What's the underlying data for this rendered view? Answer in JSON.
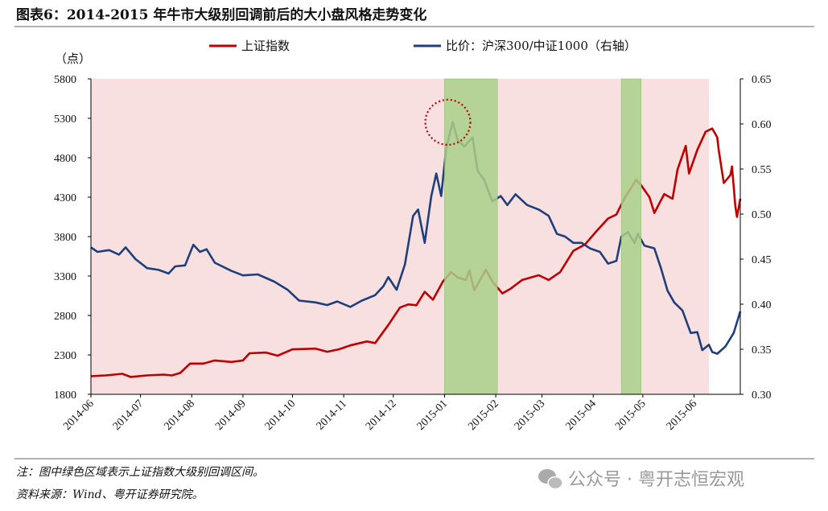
{
  "chart_data": {
    "type": "line",
    "title": "图表6：2014-2015 年牛市大级别回调前后的大小盘风格走势变化",
    "left_axis_unit": "（点）",
    "ylim_left": [
      1800,
      5800
    ],
    "yticks_left": [
      1800,
      2300,
      2800,
      3300,
      3800,
      4300,
      4800,
      5300,
      5800
    ],
    "ylim_right": [
      0.3,
      0.65
    ],
    "yticks_right": [
      "0.30",
      "0.35",
      "0.40",
      "0.45",
      "0.50",
      "0.55",
      "0.60",
      "0.65"
    ],
    "xlim": [
      "2014-06-01",
      "2015-06-29"
    ],
    "xticks": [
      "2014-06",
      "2014-07",
      "2014-08",
      "2014-09",
      "2014-10",
      "2014-11",
      "2014-12",
      "2015-01",
      "2015-02",
      "2015-03",
      "2015-04",
      "2015-05",
      "2015-06"
    ],
    "grid": false,
    "legend_position": "top",
    "background_band": {
      "from": "2014-06-01",
      "to": "2015-06-10",
      "color": "#f8e0e0"
    },
    "green_bands": [
      {
        "from": "2015-01-01",
        "to": "2015-02-02",
        "color": "#a9cf8a"
      },
      {
        "from": "2015-04-18",
        "to": "2015-04-30",
        "color": "#a9cf8a"
      }
    ],
    "highlight_circle": {
      "x": "2015-01-03",
      "y": 5250,
      "color": "#c00000"
    },
    "series": [
      {
        "name": "上证指数",
        "axis": "left",
        "color": "#c00000",
        "points": [
          [
            "2014-06-01",
            2030
          ],
          [
            "2014-06-10",
            2040
          ],
          [
            "2014-06-20",
            2060
          ],
          [
            "2014-06-25",
            2020
          ],
          [
            "2014-07-05",
            2040
          ],
          [
            "2014-07-15",
            2050
          ],
          [
            "2014-07-20",
            2040
          ],
          [
            "2014-07-25",
            2070
          ],
          [
            "2014-07-31",
            2190
          ],
          [
            "2014-08-08",
            2190
          ],
          [
            "2014-08-15",
            2230
          ],
          [
            "2014-08-25",
            2210
          ],
          [
            "2014-09-01",
            2230
          ],
          [
            "2014-09-05",
            2320
          ],
          [
            "2014-09-15",
            2330
          ],
          [
            "2014-09-22",
            2290
          ],
          [
            "2014-10-01",
            2370
          ],
          [
            "2014-10-15",
            2380
          ],
          [
            "2014-10-22",
            2340
          ],
          [
            "2014-10-29",
            2370
          ],
          [
            "2014-11-05",
            2420
          ],
          [
            "2014-11-15",
            2470
          ],
          [
            "2014-11-20",
            2450
          ],
          [
            "2014-11-28",
            2680
          ],
          [
            "2014-12-05",
            2900
          ],
          [
            "2014-12-10",
            2940
          ],
          [
            "2014-12-15",
            2930
          ],
          [
            "2014-12-20",
            3100
          ],
          [
            "2014-12-25",
            3000
          ],
          [
            "2014-12-31",
            3230
          ],
          [
            "2015-01-05",
            3350
          ],
          [
            "2015-01-09",
            3280
          ],
          [
            "2015-01-14",
            3250
          ],
          [
            "2015-01-16",
            3370
          ],
          [
            "2015-01-19",
            3120
          ],
          [
            "2015-01-26",
            3380
          ],
          [
            "2015-01-30",
            3230
          ],
          [
            "2015-02-05",
            3080
          ],
          [
            "2015-02-10",
            3140
          ],
          [
            "2015-02-17",
            3250
          ],
          [
            "2015-02-27",
            3310
          ],
          [
            "2015-03-05",
            3250
          ],
          [
            "2015-03-12",
            3350
          ],
          [
            "2015-03-20",
            3620
          ],
          [
            "2015-03-27",
            3700
          ],
          [
            "2015-04-03",
            3870
          ],
          [
            "2015-04-10",
            4030
          ],
          [
            "2015-04-15",
            4080
          ],
          [
            "2015-04-20",
            4290
          ],
          [
            "2015-04-27",
            4520
          ],
          [
            "2015-04-30",
            4450
          ],
          [
            "2015-05-05",
            4300
          ],
          [
            "2015-05-08",
            4100
          ],
          [
            "2015-05-14",
            4340
          ],
          [
            "2015-05-19",
            4280
          ],
          [
            "2015-05-22",
            4650
          ],
          [
            "2015-05-27",
            4950
          ],
          [
            "2015-05-29",
            4600
          ],
          [
            "2015-06-03",
            4900
          ],
          [
            "2015-06-08",
            5130
          ],
          [
            "2015-06-12",
            5170
          ],
          [
            "2015-06-15",
            5060
          ],
          [
            "2015-06-16",
            4890
          ],
          [
            "2015-06-19",
            4480
          ],
          [
            "2015-06-23",
            4580
          ],
          [
            "2015-06-24",
            4690
          ],
          [
            "2015-06-26",
            4190
          ],
          [
            "2015-06-27",
            4050
          ],
          [
            "2015-06-29",
            4280
          ]
        ]
      },
      {
        "name": "比价：沪深300/中证1000（右轴）",
        "axis": "right",
        "color": "#1f3f7a",
        "points": [
          [
            "2014-06-01",
            0.463
          ],
          [
            "2014-06-05",
            0.458
          ],
          [
            "2014-06-12",
            0.46
          ],
          [
            "2014-06-18",
            0.455
          ],
          [
            "2014-06-22",
            0.463
          ],
          [
            "2014-06-28",
            0.45
          ],
          [
            "2014-07-05",
            0.44
          ],
          [
            "2014-07-12",
            0.438
          ],
          [
            "2014-07-18",
            0.434
          ],
          [
            "2014-07-22",
            0.442
          ],
          [
            "2014-07-28",
            0.443
          ],
          [
            "2014-08-02",
            0.466
          ],
          [
            "2014-08-06",
            0.458
          ],
          [
            "2014-08-10",
            0.461
          ],
          [
            "2014-08-15",
            0.446
          ],
          [
            "2014-08-25",
            0.437
          ],
          [
            "2014-09-01",
            0.432
          ],
          [
            "2014-09-10",
            0.433
          ],
          [
            "2014-09-20",
            0.425
          ],
          [
            "2014-09-28",
            0.416
          ],
          [
            "2014-10-05",
            0.404
          ],
          [
            "2014-10-15",
            0.402
          ],
          [
            "2014-10-22",
            0.399
          ],
          [
            "2014-10-28",
            0.403
          ],
          [
            "2014-11-05",
            0.397
          ],
          [
            "2014-11-12",
            0.404
          ],
          [
            "2014-11-20",
            0.41
          ],
          [
            "2014-11-25",
            0.42
          ],
          [
            "2014-11-28",
            0.43
          ],
          [
            "2014-12-03",
            0.416
          ],
          [
            "2014-12-08",
            0.444
          ],
          [
            "2014-12-13",
            0.498
          ],
          [
            "2014-12-16",
            0.505
          ],
          [
            "2014-12-20",
            0.468
          ],
          [
            "2014-12-24",
            0.52
          ],
          [
            "2014-12-27",
            0.545
          ],
          [
            "2014-12-30",
            0.52
          ],
          [
            "2015-01-02",
            0.573
          ],
          [
            "2015-01-06",
            0.602
          ],
          [
            "2015-01-09",
            0.582
          ],
          [
            "2015-01-13",
            0.575
          ],
          [
            "2015-01-18",
            0.585
          ],
          [
            "2015-01-21",
            0.548
          ],
          [
            "2015-01-25",
            0.538
          ],
          [
            "2015-01-30",
            0.514
          ],
          [
            "2015-02-04",
            0.52
          ],
          [
            "2015-02-08",
            0.51
          ],
          [
            "2015-02-13",
            0.522
          ],
          [
            "2015-02-20",
            0.51
          ],
          [
            "2015-02-27",
            0.505
          ],
          [
            "2015-03-05",
            0.498
          ],
          [
            "2015-03-10",
            0.478
          ],
          [
            "2015-03-15",
            0.475
          ],
          [
            "2015-03-20",
            0.468
          ],
          [
            "2015-03-25",
            0.468
          ],
          [
            "2015-03-30",
            0.462
          ],
          [
            "2015-04-05",
            0.458
          ],
          [
            "2015-04-10",
            0.445
          ],
          [
            "2015-04-15",
            0.448
          ],
          [
            "2015-04-18",
            0.475
          ],
          [
            "2015-04-22",
            0.48
          ],
          [
            "2015-04-26",
            0.468
          ],
          [
            "2015-04-28",
            0.478
          ],
          [
            "2015-05-02",
            0.465
          ],
          [
            "2015-05-08",
            0.462
          ],
          [
            "2015-05-12",
            0.44
          ],
          [
            "2015-05-16",
            0.415
          ],
          [
            "2015-05-20",
            0.402
          ],
          [
            "2015-05-25",
            0.393
          ],
          [
            "2015-05-30",
            0.368
          ],
          [
            "2015-06-03",
            0.369
          ],
          [
            "2015-06-06",
            0.349
          ],
          [
            "2015-06-10",
            0.355
          ],
          [
            "2015-06-12",
            0.347
          ],
          [
            "2015-06-15",
            0.345
          ],
          [
            "2015-06-20",
            0.353
          ],
          [
            "2015-06-25",
            0.368
          ],
          [
            "2015-06-29",
            0.392
          ]
        ]
      }
    ]
  },
  "footer": {
    "note": "注：图中绿色区域表示上证指数大级别回调区间。",
    "source": "资料来源：Wind、粤开证券研究院。",
    "watermark": "公众号 · 粤开志恒宏观"
  }
}
